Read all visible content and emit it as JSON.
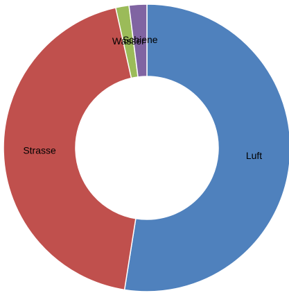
{
  "chart_data": {
    "type": "donut",
    "categories": [
      "Luft",
      "Strasse",
      "Wasser",
      "Schiene"
    ],
    "values": [
      52.5,
      44,
      1.5,
      2
    ],
    "colors": [
      "#4f81bd",
      "#c0504d",
      "#9bbb59",
      "#8064a2"
    ]
  }
}
